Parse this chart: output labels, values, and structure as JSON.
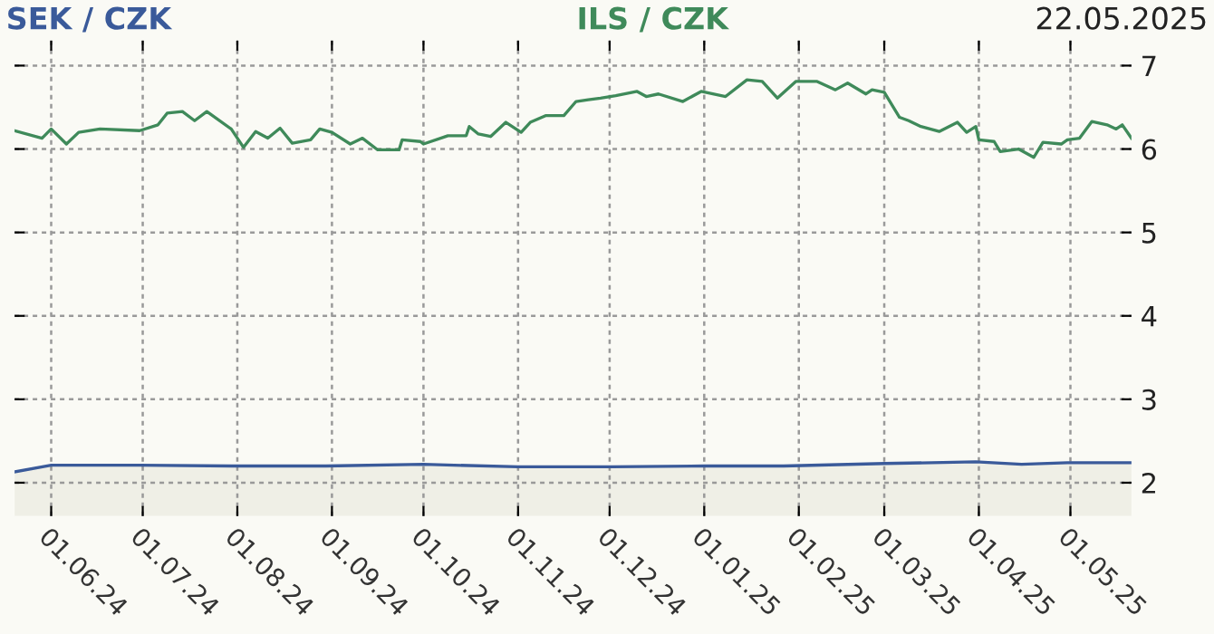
{
  "chart_data": {
    "type": "line",
    "annotations": [
      "22.05.2025"
    ],
    "legend": "top",
    "grid": true,
    "line_style": "solid",
    "marker": "none",
    "xlim": [
      "2024-05-20",
      "2025-05-21"
    ],
    "xticks": [
      {
        "value": "2024-06-01",
        "label": "01.06.24"
      },
      {
        "value": "2024-07-01",
        "label": "01.07.24"
      },
      {
        "value": "2024-08-01",
        "label": "01.08.24"
      },
      {
        "value": "2024-09-01",
        "label": "01.09.24"
      },
      {
        "value": "2024-10-01",
        "label": "01.10.24"
      },
      {
        "value": "2024-11-01",
        "label": "01.11.24"
      },
      {
        "value": "2024-12-01",
        "label": "01.12.24"
      },
      {
        "value": "2025-01-01",
        "label": "01.01.25"
      },
      {
        "value": "2025-02-01",
        "label": "01.02.25"
      },
      {
        "value": "2025-03-01",
        "label": "01.03.25"
      },
      {
        "value": "2025-04-01",
        "label": "01.04.25"
      },
      {
        "value": "2025-05-01",
        "label": "01.05.25"
      }
    ],
    "ylim": [
      1.6,
      7.3
    ],
    "yticks": [
      2,
      3,
      4,
      5,
      6,
      7
    ],
    "series": [
      {
        "name": "SEK / CZK",
        "type": "area",
        "color": "#3a5a9a",
        "x": [
          "2024-05-20",
          "2024-06-01",
          "2024-06-30",
          "2024-08-01",
          "2024-08-30",
          "2024-10-01",
          "2024-11-01",
          "2024-12-02",
          "2025-01-01",
          "2025-01-27",
          "2025-03-01",
          "2025-03-31",
          "2025-04-15",
          "2025-04-30",
          "2025-05-21"
        ],
        "values": [
          2.13,
          2.21,
          2.21,
          2.2,
          2.2,
          2.22,
          2.19,
          2.19,
          2.2,
          2.2,
          2.23,
          2.25,
          2.22,
          2.24,
          2.24
        ]
      },
      {
        "name": "ILS / CZK",
        "color": "#3f8a5a",
        "x": [
          "2024-05-20",
          "2024-05-29",
          "2024-06-01",
          "2024-06-06",
          "2024-06-10",
          "2024-06-17",
          "2024-06-30",
          "2024-07-06",
          "2024-07-09",
          "2024-07-14",
          "2024-07-18",
          "2024-07-22",
          "2024-07-30",
          "2024-08-03",
          "2024-08-07",
          "2024-08-11",
          "2024-08-15",
          "2024-08-19",
          "2024-08-25",
          "2024-08-28",
          "2024-09-01",
          "2024-09-07",
          "2024-09-11",
          "2024-09-16",
          "2024-09-23",
          "2024-09-24",
          "2024-09-30",
          "2024-10-01",
          "2024-10-09",
          "2024-10-15",
          "2024-10-16",
          "2024-10-19",
          "2024-10-23",
          "2024-10-28",
          "2024-11-02",
          "2024-11-05",
          "2024-11-10",
          "2024-11-16",
          "2024-11-20",
          "2024-11-24",
          "2024-11-28",
          "2024-12-03",
          "2024-12-10",
          "2024-12-13",
          "2024-12-17",
          "2024-12-25",
          "2024-12-31",
          "2025-01-08",
          "2025-01-15",
          "2025-01-20",
          "2025-01-25",
          "2025-01-31",
          "2025-02-07",
          "2025-02-13",
          "2025-02-17",
          "2025-02-23",
          "2025-02-25",
          "2025-03-01",
          "2025-03-06",
          "2025-03-09",
          "2025-03-13",
          "2025-03-19",
          "2025-03-25",
          "2025-03-28",
          "2025-03-31",
          "2025-04-01",
          "2025-04-06",
          "2025-04-08",
          "2025-04-14",
          "2025-04-19",
          "2025-04-22",
          "2025-04-28",
          "2025-04-30",
          "2025-05-04",
          "2025-05-08",
          "2025-05-13",
          "2025-05-16",
          "2025-05-18",
          "2025-05-21"
        ],
        "values": [
          6.22,
          6.13,
          6.24,
          6.06,
          6.2,
          6.24,
          6.22,
          6.29,
          6.43,
          6.45,
          6.34,
          6.45,
          6.24,
          6.02,
          6.21,
          6.13,
          6.25,
          6.07,
          6.11,
          6.24,
          6.2,
          6.06,
          6.13,
          5.99,
          5.99,
          6.11,
          6.09,
          6.06,
          6.16,
          6.16,
          6.27,
          6.18,
          6.15,
          6.32,
          6.2,
          6.32,
          6.4,
          6.4,
          6.57,
          6.59,
          6.61,
          6.64,
          6.69,
          6.63,
          6.66,
          6.57,
          6.69,
          6.63,
          6.83,
          6.81,
          6.61,
          6.81,
          6.81,
          6.71,
          6.79,
          6.66,
          6.71,
          6.68,
          6.38,
          6.34,
          6.27,
          6.21,
          6.32,
          6.2,
          6.27,
          6.11,
          6.09,
          5.97,
          6.0,
          5.9,
          6.08,
          6.06,
          6.11,
          6.13,
          6.33,
          6.29,
          6.24,
          6.29,
          6.13
        ]
      }
    ]
  }
}
